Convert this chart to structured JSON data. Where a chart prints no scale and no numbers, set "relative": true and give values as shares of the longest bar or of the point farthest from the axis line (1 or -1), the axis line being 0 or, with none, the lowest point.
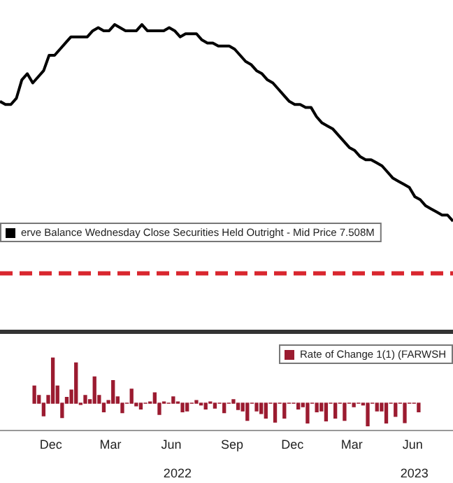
{
  "chart_data": [
    {
      "type": "line",
      "relative": true,
      "tick_labels": false,
      "legend": "bottom left",
      "marker": "none",
      "categories": [
        null,
        null,
        null,
        null,
        null,
        null,
        null,
        null,
        null,
        null,
        null,
        null,
        null,
        null,
        null,
        null,
        null,
        null,
        null,
        null,
        null,
        null,
        null,
        null,
        null,
        null,
        null,
        null,
        null,
        null,
        null,
        null,
        null,
        null,
        null,
        null,
        null,
        null,
        null,
        null,
        null,
        null,
        null,
        null,
        null,
        null,
        null,
        null,
        null,
        null,
        null,
        null,
        null,
        null,
        null,
        null,
        null,
        null,
        null,
        null,
        null,
        null,
        null,
        null,
        null,
        null,
        null,
        null,
        null,
        null,
        null,
        null,
        null,
        null,
        null,
        null,
        null,
        null,
        null,
        null,
        null,
        null,
        null,
        null
      ],
      "series": [
        {
          "name": "erve Balance Wednesday Close Securities Held Outright - Mid Price 7.508M",
          "color": "#000000",
          "values": [
            0.75,
            0.74,
            0.74,
            0.76,
            0.82,
            0.84,
            0.81,
            0.83,
            0.85,
            0.9,
            0.9,
            0.92,
            0.94,
            0.96,
            0.96,
            0.96,
            0.96,
            0.98,
            0.99,
            0.98,
            0.98,
            1,
            0.99,
            0.98,
            0.98,
            0.98,
            1,
            0.98,
            0.98,
            0.98,
            0.98,
            0.99,
            0.98,
            0.96,
            0.97,
            0.97,
            0.97,
            0.95,
            0.94,
            0.94,
            0.93,
            0.93,
            0.93,
            0.92,
            0.9,
            0.88,
            0.87,
            0.85,
            0.84,
            0.82,
            0.81,
            0.79,
            0.77,
            0.75,
            0.74,
            0.74,
            0.73,
            0.73,
            0.7,
            0.68,
            0.67,
            0.66,
            0.64,
            0.62,
            0.6,
            0.59,
            0.57,
            0.56,
            0.56,
            0.55,
            0.54,
            0.52,
            0.5,
            0.49,
            0.48,
            0.47,
            0.44,
            0.43,
            0.41,
            0.4,
            0.39,
            0.38,
            0.38,
            0.36
          ]
        }
      ],
      "ref_lines": [
        {
          "axis": "y",
          "value": 0.19,
          "color": "#d9262e",
          "line_style": "dashed"
        }
      ]
    },
    {
      "type": "bar",
      "relative": true,
      "tick_labels": "x",
      "legend": "top right",
      "x": [
        "2021-11-20",
        "2021-11-27",
        "2021-12-04",
        "2021-12-11",
        "2021-12-18",
        "2021-12-25",
        "2022-01-01",
        "2022-01-08",
        "2022-01-15",
        "2022-01-22",
        "2022-01-29",
        "2022-02-05",
        "2022-02-12",
        "2022-02-19",
        "2022-02-26",
        "2022-03-05",
        "2022-03-12",
        "2022-03-19",
        "2022-03-26",
        "2022-04-02",
        "2022-04-09",
        "2022-04-16",
        "2022-04-23",
        "2022-04-30",
        "2022-05-07",
        "2022-05-14",
        "2022-05-21",
        "2022-05-28",
        "2022-06-04",
        "2022-06-11",
        "2022-06-18",
        "2022-06-25",
        "2022-07-02",
        "2022-07-09",
        "2022-07-16",
        "2022-07-23",
        "2022-07-30",
        "2022-08-06",
        "2022-08-13",
        "2022-08-20",
        "2022-08-27",
        "2022-09-03",
        "2022-09-10",
        "2022-09-17",
        "2022-09-24",
        "2022-10-01",
        "2022-10-08",
        "2022-10-15",
        "2022-10-22",
        "2022-10-29",
        "2022-11-05",
        "2022-11-12",
        "2022-11-19",
        "2022-11-26",
        "2022-12-03",
        "2022-12-10",
        "2022-12-17",
        "2022-12-24",
        "2022-12-31",
        "2023-01-07",
        "2023-01-14",
        "2023-01-21",
        "2023-01-28",
        "2023-02-04",
        "2023-02-11",
        "2023-02-18",
        "2023-02-25",
        "2023-03-04",
        "2023-03-11",
        "2023-03-18",
        "2023-03-25",
        "2023-04-01",
        "2023-04-08",
        "2023-04-15",
        "2023-04-22",
        "2023-04-29",
        "2023-05-06",
        "2023-05-13",
        "2023-05-20",
        "2023-05-27",
        "2023-06-03",
        "2023-06-10",
        "2023-06-17",
        "2023-06-24"
      ],
      "xlim": [
        "2021-11-17",
        "2023-06-27"
      ],
      "xticks": [
        {
          "value": "2021-12-15",
          "label": "Dec"
        },
        {
          "value": "2022-03-15",
          "label": "Mar"
        },
        {
          "value": "2022-06-15",
          "label": "Jun"
        },
        {
          "value": "2022-09-15",
          "label": "Sep"
        },
        {
          "value": "2022-12-15",
          "label": "Dec"
        },
        {
          "value": "2023-03-15",
          "label": "Mar"
        },
        {
          "value": "2023-06-15",
          "label": "Jun"
        }
      ],
      "x2lim": [
        "2021-11-17",
        "2023-06-27"
      ],
      "x2ticks": [
        {
          "value": "2022-07-05",
          "label": "2022"
        },
        {
          "value": "2023-05-08",
          "label": "2023"
        }
      ],
      "series": [
        {
          "name": "Rate of Change 1(1) (FARWSH",
          "color": "#9b1b30",
          "values": [
            0.38,
            0.17,
            -0.28,
            0.17,
            1,
            0.38,
            -0.32,
            0.13,
            0.29,
            0.89,
            -0.03,
            0.17,
            0.08,
            0.58,
            0.17,
            -0.19,
            0.06,
            0.5,
            0.14,
            -0.21,
            0,
            0.31,
            -0.06,
            -0.13,
            0,
            0.03,
            0.23,
            -0.25,
            0.03,
            0,
            0.14,
            0.03,
            -0.19,
            -0.17,
            0,
            0.06,
            -0.04,
            -0.13,
            0.03,
            -0.11,
            0,
            -0.21,
            0,
            0.08,
            -0.14,
            -0.17,
            -0.38,
            0,
            -0.17,
            -0.23,
            -0.33,
            0,
            -0.42,
            0,
            -0.33,
            0,
            0,
            -0.13,
            -0.08,
            -0.44,
            0,
            -0.19,
            -0.17,
            -0.39,
            0,
            -0.33,
            0,
            -0.38,
            0,
            -0.08,
            0,
            -0.04,
            -0.5,
            0,
            -0.17,
            -0.17,
            -0.44,
            0,
            -0.29,
            0,
            -0.43,
            0,
            0,
            -0.19
          ]
        }
      ]
    }
  ]
}
